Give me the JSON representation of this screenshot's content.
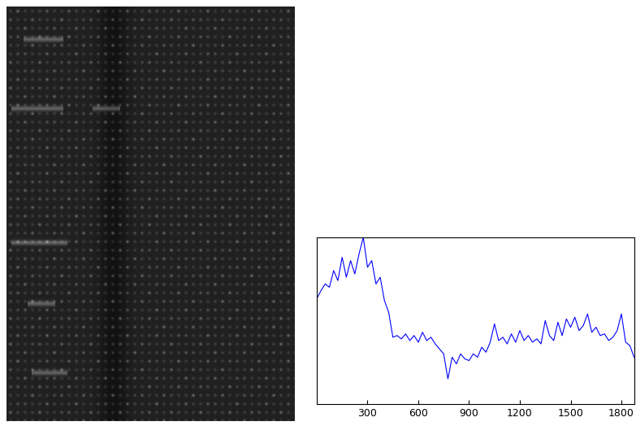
{
  "chart_data": {
    "type": "line",
    "x": [
      0,
      25,
      50,
      75,
      100,
      125,
      150,
      175,
      200,
      225,
      250,
      275,
      300,
      325,
      350,
      375,
      400,
      425,
      450,
      475,
      500,
      525,
      550,
      575,
      600,
      625,
      650,
      675,
      700,
      725,
      750,
      775,
      800,
      825,
      850,
      875,
      900,
      925,
      950,
      975,
      1000,
      1025,
      1050,
      1075,
      1100,
      1125,
      1150,
      1175,
      1200,
      1225,
      1250,
      1275,
      1300,
      1325,
      1350,
      1375,
      1400,
      1425,
      1450,
      1475,
      1500,
      1525,
      1550,
      1575,
      1600,
      1625,
      1650,
      1675,
      1700,
      1725,
      1750,
      1775,
      1800,
      1825,
      1850,
      1875
    ],
    "values": [
      63,
      68,
      72,
      70,
      80,
      74,
      88,
      76,
      86,
      78,
      90,
      100,
      82,
      86,
      72,
      76,
      62,
      55,
      40,
      41,
      39,
      42,
      38,
      41,
      37,
      43,
      38,
      40,
      36,
      33,
      30,
      15,
      28,
      24,
      30,
      27,
      26,
      30,
      28,
      34,
      31,
      37,
      48,
      38,
      40,
      36,
      42,
      37,
      44,
      38,
      41,
      37,
      39,
      36,
      50,
      41,
      38,
      49,
      41,
      51,
      46,
      52,
      44,
      47,
      54,
      43,
      46,
      41,
      42,
      38,
      40,
      44,
      54,
      37,
      35,
      28
    ],
    "color": "#0000ff",
    "xlim": [
      0,
      1875
    ],
    "xticks": [
      300,
      600,
      900,
      1200,
      1500,
      1800
    ],
    "ylim": [
      0,
      100
    ],
    "yticks": [],
    "tick_labels": "x"
  }
}
